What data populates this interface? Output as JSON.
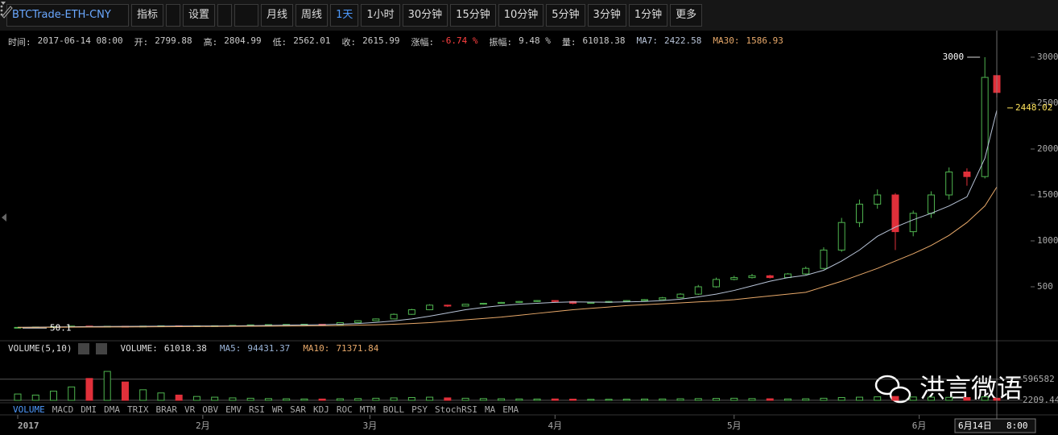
{
  "toolbar": {
    "symbol": "BTCTrade-ETH-CNY",
    "indicator": "指标",
    "settings": "设置",
    "periods": [
      "月线",
      "周线",
      "1天",
      "1小时",
      "30分钟",
      "15分钟",
      "10分钟",
      "5分钟",
      "3分钟",
      "1分钟"
    ],
    "active_period": 2,
    "more": "更多"
  },
  "info_bar": {
    "time_label": "时间:",
    "time": "2017-06-14  08:00",
    "open_label": "开:",
    "high_label": "高:",
    "low_label": "低:",
    "close_label": "收:",
    "change_label": "涨幅:",
    "change": "-6.74 %",
    "amplitude_label": "振幅:",
    "amplitude": "9.48 %",
    "volume_label": "量:",
    "ma7_label": "MA7:",
    "ma30_label": "MA30:"
  },
  "volume_header": {
    "title": "VOLUME(5,10)",
    "volume_label": "VOLUME:",
    "ma5_label": "MA5:",
    "ma5": 94431.37,
    "ma10_label": "MA10:",
    "ma10": 71371.84
  },
  "indicator_tabs": [
    "VOLUME",
    "MACD",
    "DMI",
    "DMA",
    "TRIX",
    "BRAR",
    "VR",
    "OBV",
    "EMV",
    "RSI",
    "WR",
    "SAR",
    "KDJ",
    "ROC",
    "MTM",
    "BOLL",
    "PSY",
    "StochRSI",
    "MA",
    "EMA"
  ],
  "watermark": "洪言微语",
  "chart_data": {
    "type": "candlestick",
    "x": [
      0,
      3,
      6,
      9,
      12,
      15,
      18,
      21,
      24,
      27,
      30,
      33,
      36,
      39,
      42,
      45,
      48,
      51,
      54,
      57,
      60,
      63,
      66,
      69,
      72,
      75,
      78,
      81,
      84,
      87,
      90,
      93,
      96,
      99,
      102,
      105,
      108,
      111,
      114,
      117,
      120,
      123,
      126,
      129,
      132,
      135,
      138,
      141,
      144,
      147,
      150,
      153,
      156,
      159,
      162,
      164
    ],
    "open": [
      55,
      58,
      62,
      66,
      72,
      68,
      70,
      68,
      72,
      75,
      72,
      75,
      76,
      80,
      85,
      88,
      90,
      92,
      88,
      110,
      130,
      150,
      200,
      250,
      300,
      290,
      310,
      320,
      330,
      340,
      350,
      340,
      320,
      330,
      340,
      350,
      360,
      380,
      420,
      500,
      580,
      600,
      620,
      600,
      640,
      700,
      900,
      1200,
      1400,
      1500,
      1100,
      1300,
      1500,
      1750,
      1700,
      2799.88
    ],
    "high": [
      60,
      63,
      68,
      74,
      73,
      72,
      71,
      73,
      77,
      76,
      76,
      78,
      82,
      87,
      90,
      92,
      95,
      93,
      112,
      134,
      155,
      210,
      260,
      310,
      305,
      315,
      325,
      335,
      345,
      355,
      352,
      345,
      335,
      345,
      355,
      365,
      390,
      430,
      520,
      600,
      620,
      640,
      630,
      650,
      720,
      930,
      1250,
      1450,
      1560,
      1520,
      1330,
      1540,
      1800,
      1790,
      3000,
      2804.99
    ],
    "low": [
      50.1,
      56,
      60,
      64,
      66,
      67,
      66,
      67,
      70,
      70,
      71,
      73,
      74,
      78,
      83,
      86,
      88,
      86,
      86,
      108,
      128,
      146,
      195,
      245,
      280,
      285,
      305,
      315,
      325,
      335,
      330,
      310,
      315,
      325,
      335,
      345,
      355,
      375,
      410,
      490,
      570,
      590,
      590,
      595,
      630,
      690,
      880,
      1150,
      1350,
      900,
      1050,
      1250,
      1450,
      1600,
      1680,
      2562.01
    ],
    "close": [
      58,
      62,
      66,
      72,
      68,
      70,
      68,
      72,
      75,
      72,
      75,
      76,
      80,
      85,
      88,
      90,
      92,
      88,
      110,
      130,
      150,
      200,
      250,
      300,
      290,
      310,
      320,
      330,
      340,
      350,
      340,
      320,
      330,
      340,
      350,
      360,
      380,
      420,
      500,
      580,
      600,
      620,
      600,
      640,
      700,
      900,
      1200,
      1400,
      1500,
      1100,
      1300,
      1500,
      1750,
      1700,
      2780,
      2615.99
    ],
    "series": [
      {
        "color": "#b8c4d8",
        "values": [
          58,
          60,
          62,
          65,
          67,
          68,
          69,
          70,
          71,
          72,
          73,
          74,
          75,
          77,
          79,
          82,
          85,
          87,
          92,
          100,
          112,
          128,
          150,
          180,
          215,
          250,
          275,
          295,
          310,
          320,
          330,
          335,
          333,
          332,
          335,
          340,
          350,
          365,
          390,
          420,
          460,
          510,
          560,
          600,
          625,
          680,
          780,
          900,
          1050,
          1150,
          1230,
          1300,
          1380,
          1480,
          1900,
          2422.58
        ]
      },
      {
        "color": "#e8a96a",
        "values": [
          58,
          58,
          59,
          60,
          61,
          62,
          63,
          64,
          65,
          66,
          67,
          68,
          69,
          70,
          71,
          72,
          74,
          76,
          78,
          82,
          86,
          92,
          100,
          110,
          125,
          140,
          155,
          170,
          190,
          210,
          230,
          250,
          265,
          280,
          295,
          305,
          315,
          325,
          335,
          345,
          360,
          380,
          400,
          420,
          440,
          500,
          560,
          630,
          700,
          780,
          860,
          950,
          1060,
          1200,
          1380,
          1586.93
        ]
      }
    ],
    "up_color": "#4fb44f",
    "down_color": "#e0303a",
    "xlim": [
      0,
      164
    ],
    "xticks": [
      {
        "value": 0,
        "label": "2017"
      },
      {
        "value": 31,
        "label": "2月"
      },
      {
        "value": 59,
        "label": "3月"
      },
      {
        "value": 90,
        "label": "4月"
      },
      {
        "value": 120,
        "label": "5月"
      },
      {
        "value": 151,
        "label": "6月"
      }
    ],
    "ylim": [
      0,
      3000
    ],
    "yticks": [
      500,
      1000,
      1500,
      2000,
      2500,
      3000
    ],
    "max_marker": {
      "x": 162,
      "value": 3000
    },
    "min_marker": {
      "x": 0,
      "value": 50.1
    },
    "last_marker": {
      "value": 2448.02
    },
    "crosshair": {
      "date": "6月14日",
      "time": "8:00"
    },
    "volume": {
      "values": [
        180000,
        150000,
        260000,
        380000,
        620000,
        820000,
        520000,
        300000,
        210000,
        150000,
        110000,
        90000,
        70000,
        60000,
        50000,
        45000,
        40000,
        38000,
        45000,
        50000,
        60000,
        70000,
        80000,
        90000,
        70000,
        60000,
        50000,
        45000,
        40000,
        38000,
        40000,
        35000,
        30000,
        32000,
        35000,
        38000,
        40000,
        45000,
        50000,
        55000,
        60000,
        50000,
        45000,
        40000,
        45000,
        60000,
        80000,
        90000,
        100000,
        110000,
        95000,
        90000,
        85000,
        80000,
        100000,
        61018.38
      ],
      "ylim": [
        0,
        1300000
      ],
      "yticks": [
        596582,
        2209.44
      ]
    }
  }
}
